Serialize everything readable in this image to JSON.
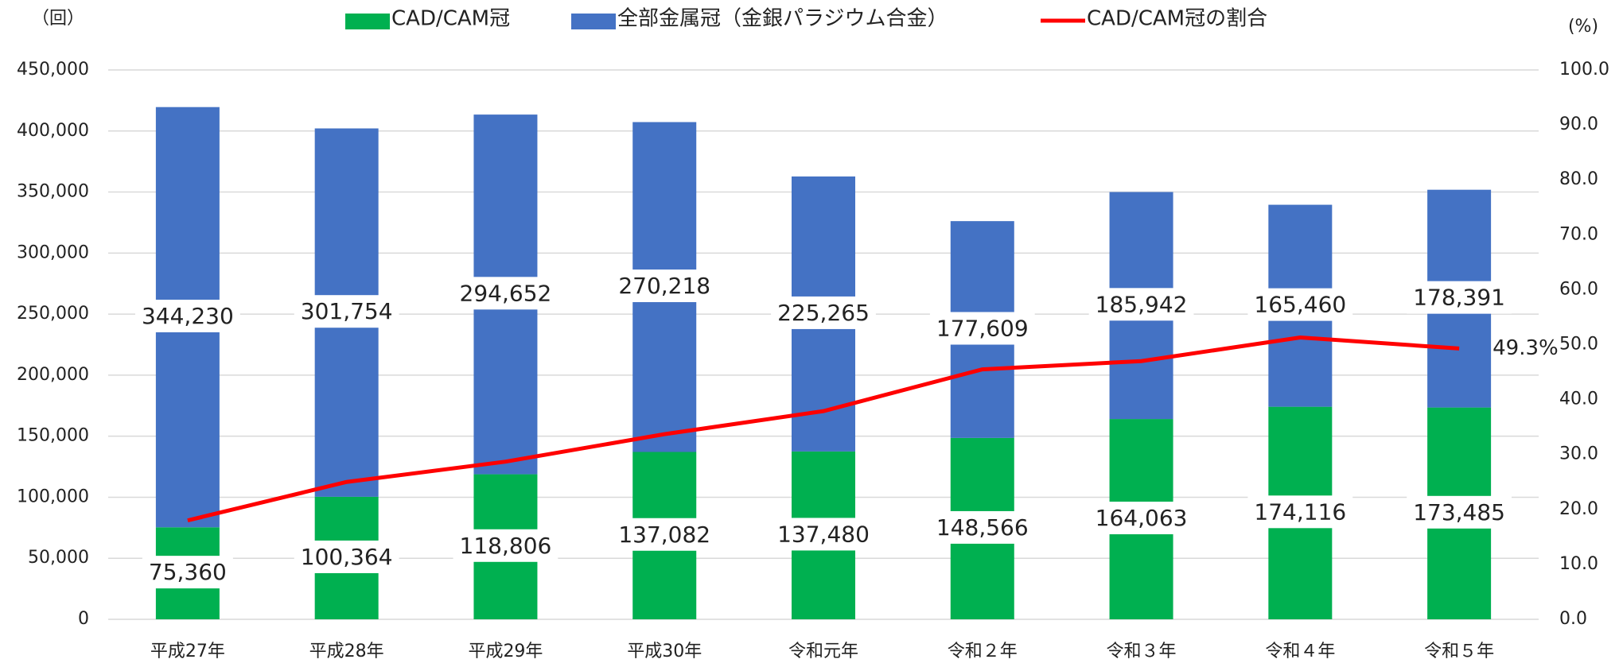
{
  "chart_data": {
    "type": "bar",
    "y_axis_label": "（回）",
    "y2_axis_label": "(%)",
    "categories": [
      "平成27年",
      "平成28年",
      "平成29年",
      "平成30年",
      "令和元年",
      "令和２年",
      "令和３年",
      "令和４年",
      "令和５年"
    ],
    "series": [
      {
        "name": "CAD/CAM冠",
        "type": "bar",
        "color": "#00b050",
        "values": [
          75360,
          100364,
          118806,
          137082,
          137480,
          148566,
          164063,
          174116,
          173485
        ],
        "value_labels": [
          "75,360",
          "100,364",
          "118,806",
          "137,082",
          "137,480",
          "148,566",
          "164,063",
          "174,116",
          "173,485"
        ]
      },
      {
        "name": "全部金属冠（金銀パラジウム合金）",
        "type": "bar",
        "color": "#4472c4",
        "values": [
          344230,
          301754,
          294652,
          270218,
          225265,
          177609,
          185942,
          165460,
          178391
        ],
        "value_labels": [
          "344,230",
          "301,754",
          "294,652",
          "270,218",
          "225,265",
          "177,609",
          "185,942",
          "165,460",
          "178,391"
        ]
      },
      {
        "name": "CAD/CAM冠の割合",
        "type": "line",
        "axis": "y2",
        "color": "#ff0000",
        "values": [
          18.0,
          25.0,
          28.7,
          33.7,
          37.9,
          45.5,
          47.0,
          51.3,
          49.3
        ],
        "value_labels": [
          null,
          null,
          null,
          null,
          null,
          null,
          null,
          null,
          "49.3%"
        ]
      }
    ],
    "ylim": [
      0,
      450000
    ],
    "yticks": [
      {
        "value": 0,
        "label": "0"
      },
      {
        "value": 50000,
        "label": "50,000"
      },
      {
        "value": 100000,
        "label": "100,000"
      },
      {
        "value": 150000,
        "label": "150,000"
      },
      {
        "value": 200000,
        "label": "200,000"
      },
      {
        "value": 250000,
        "label": "250,000"
      },
      {
        "value": 300000,
        "label": "300,000"
      },
      {
        "value": 350000,
        "label": "350,000"
      },
      {
        "value": 400000,
        "label": "400,000"
      },
      {
        "value": 450000,
        "label": "450,000"
      }
    ],
    "y2lim": [
      0,
      100
    ],
    "y2ticks": [
      {
        "value": 0,
        "label": "0.0"
      },
      {
        "value": 10,
        "label": "10.0"
      },
      {
        "value": 20,
        "label": "20.0"
      },
      {
        "value": 30,
        "label": "30.0"
      },
      {
        "value": 40,
        "label": "40.0"
      },
      {
        "value": 50,
        "label": "50.0"
      },
      {
        "value": 60,
        "label": "60.0"
      },
      {
        "value": 70,
        "label": "70.0"
      },
      {
        "value": 80,
        "label": "80.0"
      },
      {
        "value": 90,
        "label": "90.0"
      },
      {
        "value": 100,
        "label": "100.0"
      }
    ],
    "grid": true,
    "legend": "top"
  }
}
